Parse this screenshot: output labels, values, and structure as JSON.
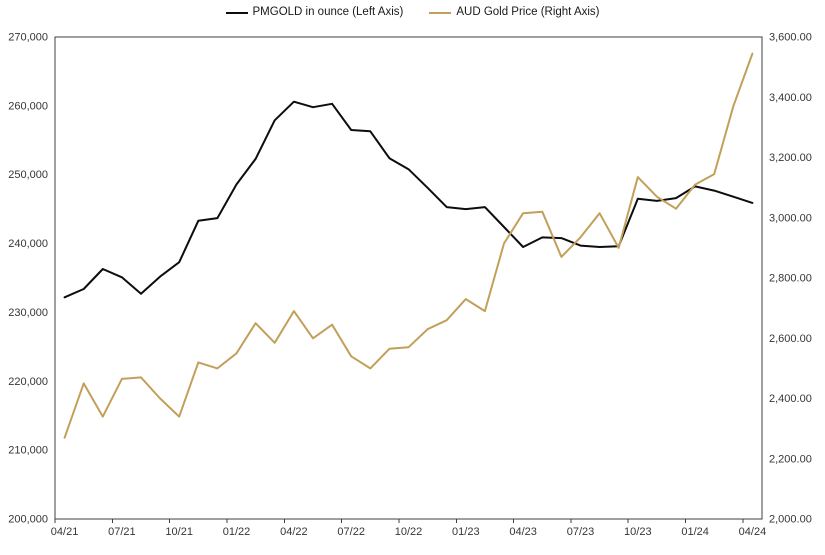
{
  "chart_data": {
    "type": "line",
    "title": "",
    "x_months": 37,
    "x_tick_labels": [
      "04/21",
      "07/21",
      "10/21",
      "01/22",
      "04/22",
      "07/22",
      "10/22",
      "01/23",
      "04/23",
      "07/23",
      "10/23",
      "01/24",
      "04/24"
    ],
    "grid": false,
    "legend_position": "top",
    "plot_border_color": "#3f3f3f",
    "left_axis": {
      "min": 200000,
      "max": 270000,
      "step": 10000,
      "tick_labels": [
        "270,000",
        "260,000",
        "250,000",
        "240,000",
        "230,000",
        "220,000",
        "210,000",
        "200,000"
      ]
    },
    "right_axis": {
      "min": 2000,
      "max": 3600,
      "step": 200,
      "tick_labels": [
        "3,600.00",
        "3,400.00",
        "3,200.00",
        "3,000.00",
        "2,800.00",
        "2,600.00",
        "2,400.00",
        "2,200.00",
        "2,000.00"
      ]
    },
    "series": [
      {
        "name": "PMGOLD in ounce (Left Axis)",
        "axis": "left",
        "color": "#0d0d0d",
        "values": [
          232200,
          233400,
          236300,
          235100,
          232700,
          235200,
          237300,
          243300,
          243700,
          248600,
          252300,
          257900,
          260600,
          259800,
          260300,
          256500,
          256300,
          252400,
          250800,
          248100,
          245300,
          245000,
          245300,
          242400,
          239500,
          240900,
          240800,
          239700,
          239500,
          239600,
          246500,
          246200,
          246600,
          248300,
          247700,
          246800,
          245900
        ]
      },
      {
        "name": "AUD Gold Price (Right Axis)",
        "axis": "right",
        "color": "#c2a05a",
        "values": [
          2270,
          2450,
          2340,
          2465,
          2470,
          2400,
          2340,
          2520,
          2500,
          2550,
          2650,
          2585,
          2690,
          2600,
          2645,
          2540,
          2500,
          2565,
          2570,
          2630,
          2660,
          2730,
          2690,
          2915,
          3015,
          3020,
          2870,
          2935,
          3015,
          2900,
          3135,
          3070,
          3030,
          3110,
          3145,
          3370,
          3545
        ]
      }
    ]
  },
  "legend": {
    "items": [
      {
        "label": "PMGOLD in ounce (Left Axis)"
      },
      {
        "label": "AUD Gold Price (Right Axis)"
      }
    ]
  }
}
